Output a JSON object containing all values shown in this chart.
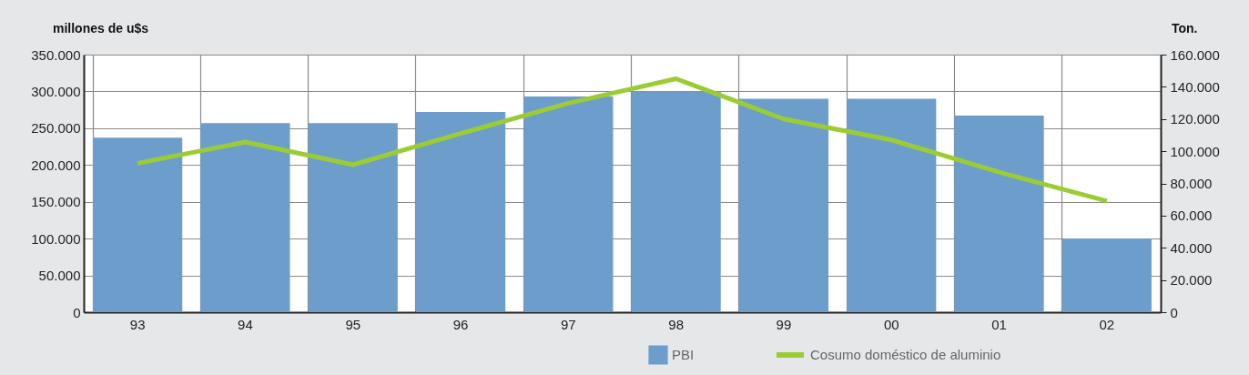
{
  "chart_data": {
    "type": "bar",
    "ylabel": "millones de u$s",
    "y2label": "Ton.",
    "categories": [
      "93",
      "94",
      "95",
      "96",
      "97",
      "98",
      "99",
      "00",
      "01",
      "02"
    ],
    "series": [
      {
        "name": "PBI",
        "type": "bar",
        "color": "#6d9ecb",
        "values": [
          237000,
          257000,
          257000,
          272000,
          293000,
          300000,
          290000,
          290000,
          267000,
          100000
        ]
      },
      {
        "name": "Cosumo doméstico de aluminio",
        "type": "line",
        "axis": "y2",
        "color": "#9ccc35",
        "values": [
          92500,
          105700,
          91600,
          111000,
          129800,
          145000,
          120000,
          107000,
          87000,
          69000
        ]
      }
    ],
    "ylim": [
      0,
      350000
    ],
    "yticks": [
      {
        "value": 0,
        "label": "0"
      },
      {
        "value": 50000,
        "label": "50.000"
      },
      {
        "value": 100000,
        "label": "100.000"
      },
      {
        "value": 150000,
        "label": "150.000"
      },
      {
        "value": 200000,
        "label": "200.000"
      },
      {
        "value": 250000,
        "label": "250.000"
      },
      {
        "value": 300000,
        "label": "300.000"
      },
      {
        "value": 350000,
        "label": "350.000"
      }
    ],
    "y2lim": [
      0,
      160000
    ],
    "y2ticks": [
      {
        "value": 0,
        "label": "0"
      },
      {
        "value": 20000,
        "label": "20.000"
      },
      {
        "value": 40000,
        "label": "40.000"
      },
      {
        "value": 60000,
        "label": "60.000"
      },
      {
        "value": 80000,
        "label": "80.000"
      },
      {
        "value": 100000,
        "label": "100.000"
      },
      {
        "value": 120000,
        "label": "120.000"
      },
      {
        "value": 140000,
        "label": "140.000"
      },
      {
        "value": 160000,
        "label": "160.000"
      }
    ],
    "grid": true,
    "legend": "bottom",
    "line_style": "solid",
    "marker": "none"
  }
}
